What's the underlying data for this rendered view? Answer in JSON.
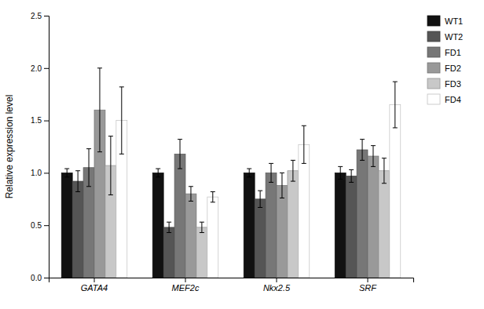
{
  "chart_data": {
    "type": "bar",
    "ylabel": "Relative expression level",
    "categories": [
      "GATA4",
      "MEF2c",
      "Nkx2.5",
      "SRF"
    ],
    "series": [
      {
        "name": "WT1",
        "color": "#111111",
        "values": [
          1.0,
          1.0,
          1.0,
          1.0
        ],
        "errors": [
          0.04,
          0.04,
          0.04,
          0.06
        ]
      },
      {
        "name": "WT2",
        "color": "#555555",
        "values": [
          0.92,
          0.48,
          0.75,
          0.97
        ],
        "errors": [
          0.1,
          0.05,
          0.08,
          0.06
        ]
      },
      {
        "name": "FD1",
        "color": "#777777",
        "values": [
          1.05,
          1.18,
          1.0,
          1.22
        ],
        "errors": [
          0.18,
          0.14,
          0.09,
          0.1
        ]
      },
      {
        "name": "FD2",
        "color": "#999999",
        "values": [
          1.6,
          0.8,
          0.88,
          1.16
        ],
        "errors": [
          0.4,
          0.07,
          0.12,
          0.1
        ]
      },
      {
        "name": "FD3",
        "color": "#c8c8c8",
        "values": [
          1.07,
          0.48,
          1.02,
          1.02
        ],
        "errors": [
          0.28,
          0.05,
          0.1,
          0.12
        ]
      },
      {
        "name": "FD4",
        "color": "#ffffff",
        "values": [
          1.5,
          0.77,
          1.27,
          1.65
        ],
        "errors": [
          0.32,
          0.05,
          0.18,
          0.22
        ]
      }
    ],
    "ylim": [
      0,
      2.5
    ],
    "yticks": [
      {
        "value": 0,
        "label": "0.0"
      },
      0.5,
      {
        "value": 1,
        "label": "1.0"
      },
      1.5,
      {
        "value": 2,
        "label": "2.0"
      },
      2.5
    ],
    "grid": false,
    "legend": "right"
  }
}
